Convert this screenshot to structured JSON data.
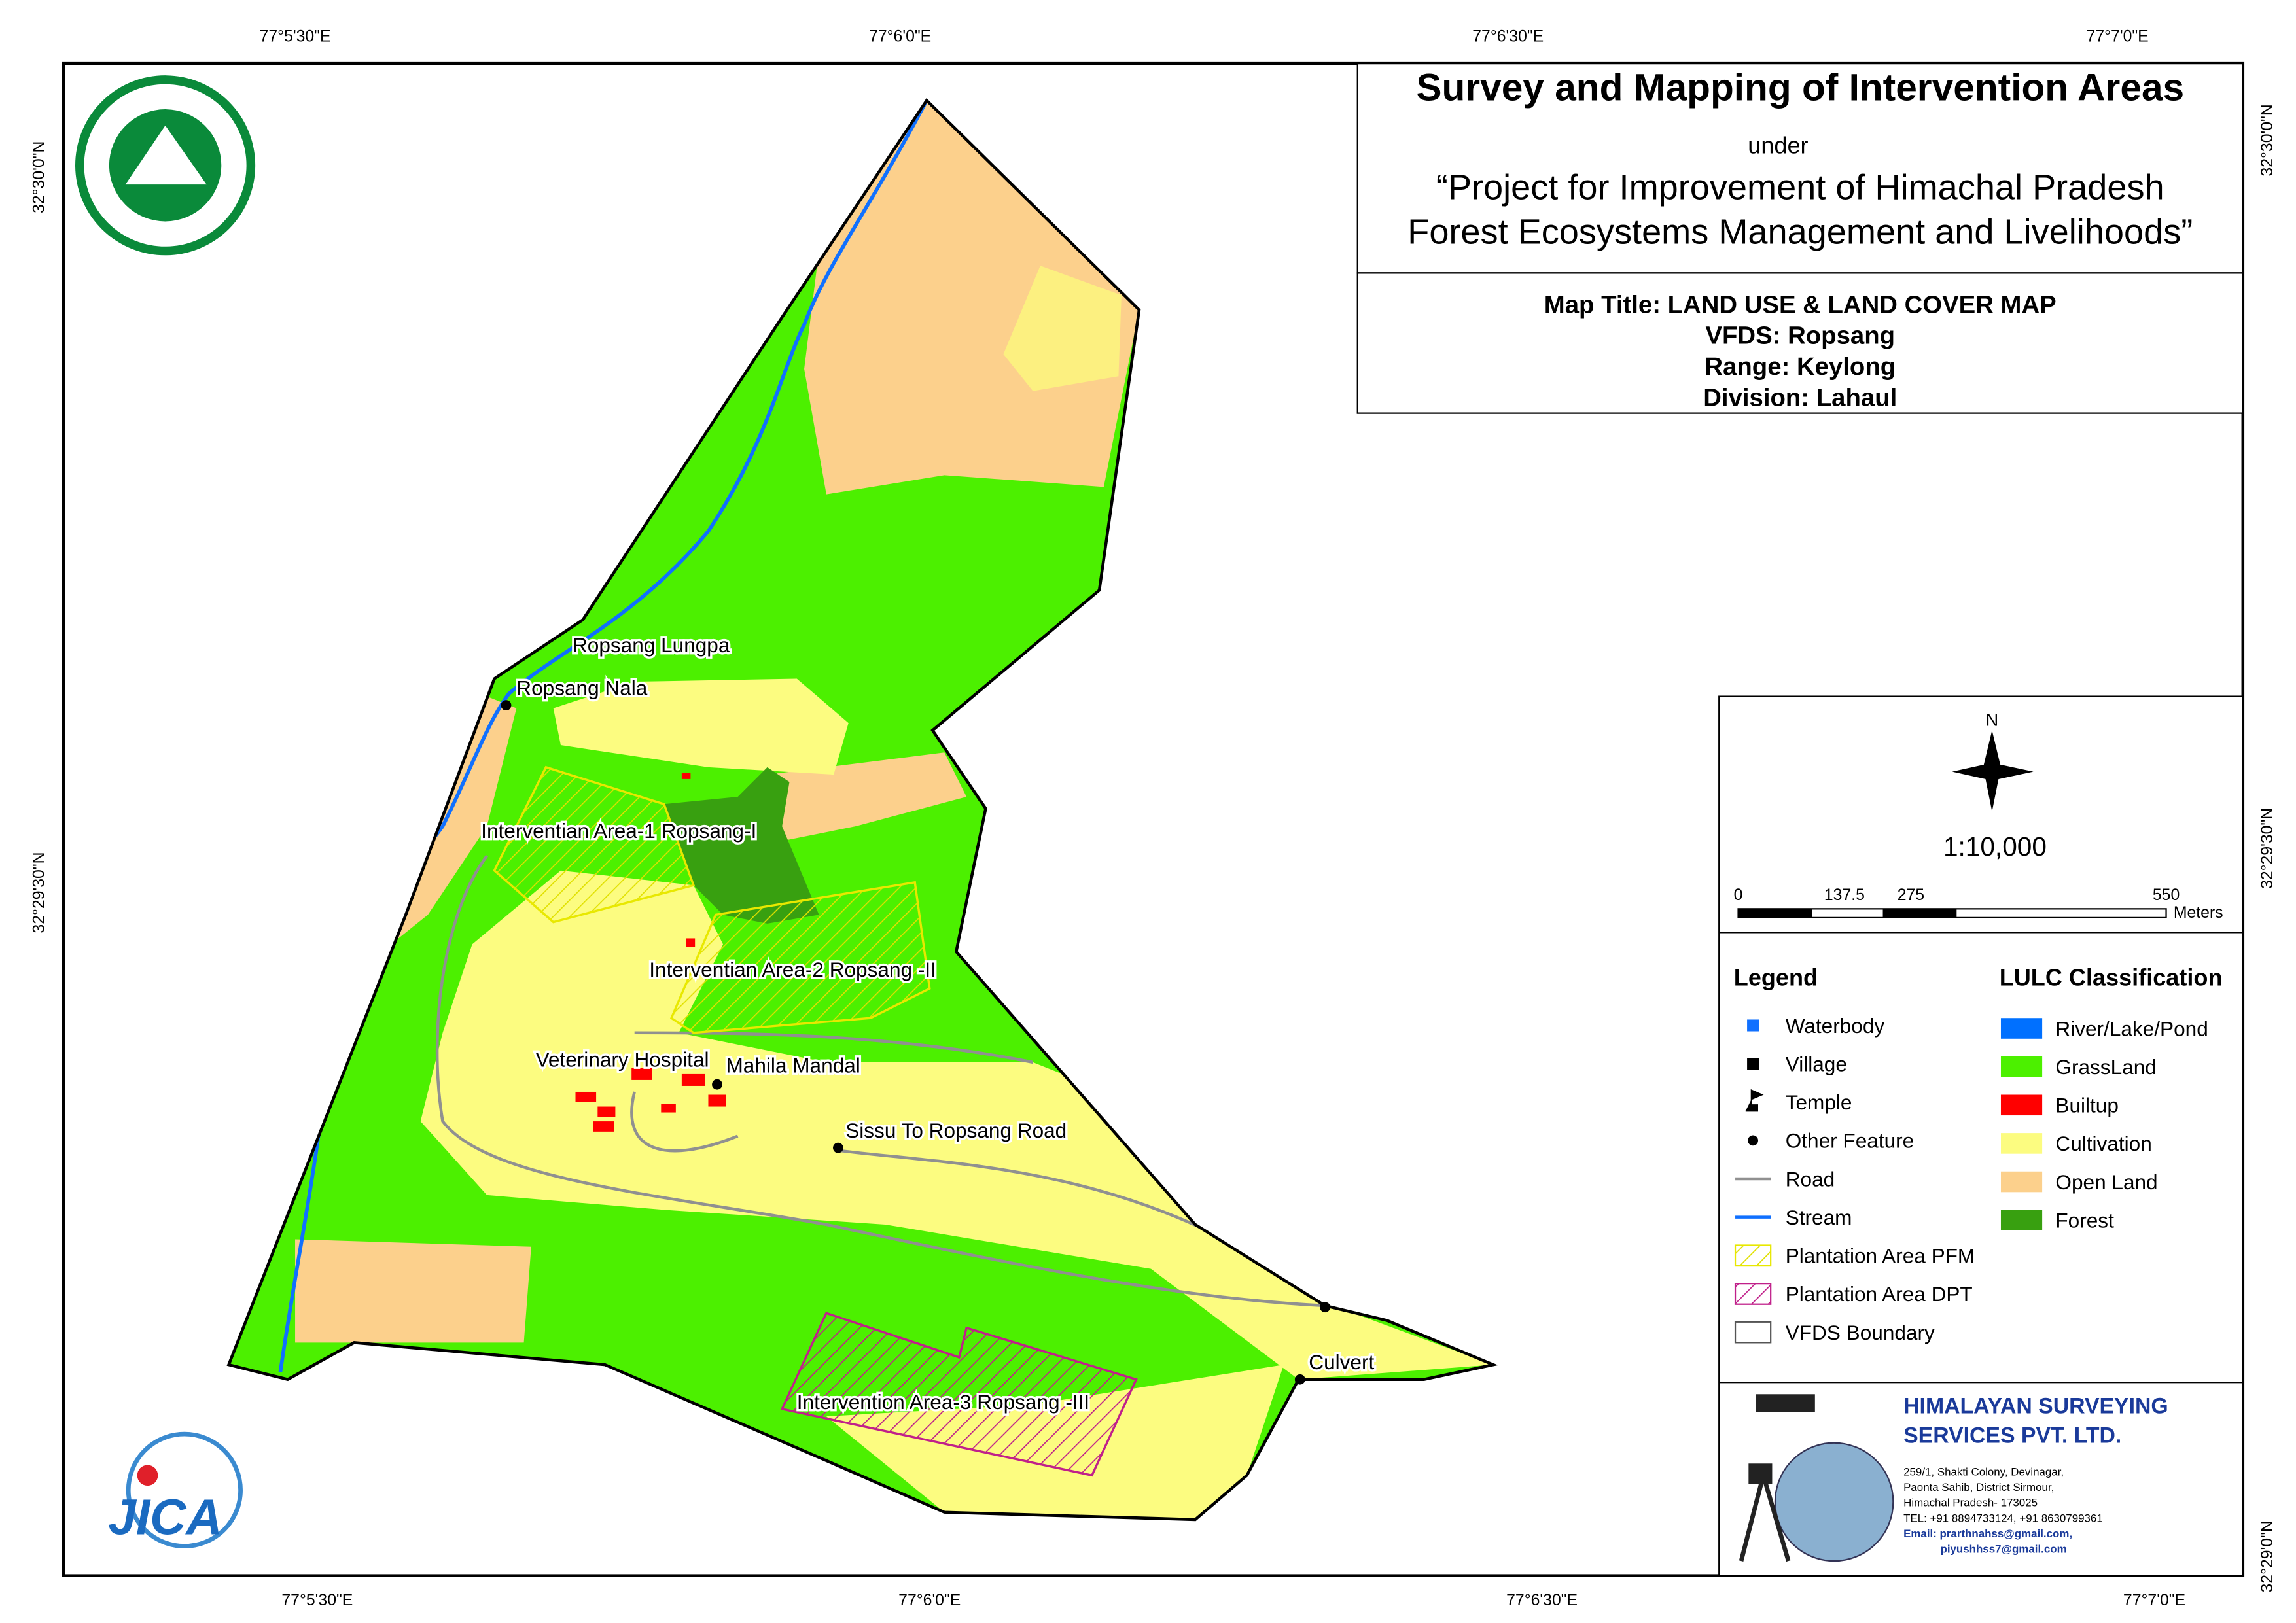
{
  "header": {
    "title": "Survey and Mapping of Intervention Areas",
    "under": "under",
    "project": [
      "“Project for Improvement of Himachal Pradesh",
      "Forest Ecosystems Management and Livelihoods”"
    ]
  },
  "map_info": [
    "Map Title: LAND USE & LAND COVER MAP",
    "VFDS: Ropsang",
    "Range: Keylong",
    "Division: Lahaul"
  ],
  "graticule": {
    "top": [
      "77°5'30\"E",
      "77°6'0\"E",
      "77°6'30\"E",
      "77°7'0\"E"
    ],
    "bottom": [
      "77°5'30\"E",
      "77°6'0\"E",
      "77°6'30\"E",
      "77°7'0\"E"
    ],
    "left": [
      "32°30'0\"N",
      "32°29'30\"N"
    ],
    "right": [
      "32°30'0\"N",
      "32°29'30\"N",
      "32°29'0\"N"
    ]
  },
  "places": [
    "Ropsang Lungpa",
    "Ropsang Nala",
    "Interventian Area-1 Ropsang-I",
    "Interventian Area-2 Ropsang -II",
    "Veterinary Hospital",
    "Mahila Mandal",
    "Sissu To Ropsang Road",
    "Culvert",
    "Intervention Area-3 Ropsang -III"
  ],
  "north": "N",
  "scale": "1:10,000",
  "scale_bar": [
    "0",
    "137.5",
    "275",
    "550",
    "Meters"
  ],
  "legend": {
    "title": "Legend",
    "items": [
      "Waterbody",
      "Village",
      "Temple",
      "Other Feature",
      "Road",
      "Stream",
      "Plantation Area PFM",
      "Plantation Area DPT",
      "VFDS Boundary"
    ]
  },
  "lulc": {
    "title": "LULC Classification",
    "items": [
      {
        "label": "River/Lake/Pond",
        "color": "#0070ff"
      },
      {
        "label": "GrassLand",
        "color": "#4cf000"
      },
      {
        "label": "Builtup",
        "color": "#ff0000"
      },
      {
        "label": "Cultivation",
        "color": "#fcfc80"
      },
      {
        "label": "Open Land",
        "color": "#fcd08c"
      },
      {
        "label": "Forest",
        "color": "#38a010"
      }
    ]
  },
  "company": {
    "name": [
      "HIMALAYAN SURVEYING",
      "SERVICES PVT. LTD."
    ],
    "address": [
      "259/1, Shakti Colony, Devinagar,",
      "Paonta Sahib, District Sirmour,",
      "Himachal Pradesh- 173025",
      "TEL: +91 8894733124, +91 8630799361",
      "Email: prarthnahss@gmail.com,",
      "piyushhss7@gmail.com"
    ]
  },
  "logo": "JICA"
}
